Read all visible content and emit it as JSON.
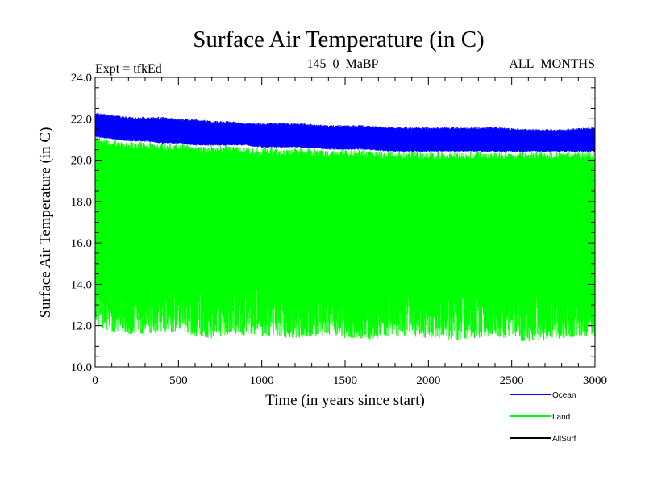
{
  "chart_data": {
    "type": "line",
    "title": "Surface Air Temperature (in C)",
    "subtitle_left": "Expt = tfkEd",
    "subtitle_center": "145_0_MaBP",
    "subtitle_right": "ALL_MONTHS",
    "xlabel": "Time (in years since start)",
    "ylabel": "Surface Air Temperature (in C)",
    "xlim": [
      0,
      3000
    ],
    "ylim": [
      10.0,
      24.0
    ],
    "x_ticks": [
      0,
      500,
      1000,
      1500,
      2000,
      2500,
      3000
    ],
    "x_tick_labels": [
      "0",
      "500",
      "1000",
      "1500",
      "2000",
      "2500",
      "3000"
    ],
    "y_ticks": [
      10,
      12,
      14,
      16,
      18,
      20,
      22,
      24
    ],
    "y_tick_labels": [
      "10.0",
      "12.0",
      "14.0",
      "16.0",
      "18.0",
      "20.0",
      "22.0",
      "24.0"
    ],
    "grid": false,
    "legend_position": "bottom-right",
    "series": [
      {
        "name": "Ocean",
        "color": "#0000ff",
        "x": [
          0,
          100,
          200,
          300,
          400,
          500,
          600,
          700,
          800,
          900,
          1000,
          1200,
          1400,
          1600,
          1800,
          2000,
          2200,
          2400,
          2600,
          2800,
          3000
        ],
        "y_min": [
          21.1,
          21.0,
          20.9,
          20.9,
          20.8,
          20.8,
          20.7,
          20.7,
          20.7,
          20.7,
          20.6,
          20.6,
          20.5,
          20.5,
          20.4,
          20.4,
          20.4,
          20.4,
          20.4,
          20.4,
          20.4
        ],
        "y_max": [
          22.3,
          22.2,
          22.1,
          22.1,
          22.1,
          22.0,
          22.0,
          21.9,
          21.9,
          21.8,
          21.8,
          21.8,
          21.7,
          21.7,
          21.6,
          21.6,
          21.6,
          21.6,
          21.5,
          21.5,
          21.6
        ]
      },
      {
        "name": "Land",
        "color": "#00ff00",
        "x": [
          0,
          100,
          200,
          300,
          400,
          500,
          600,
          700,
          800,
          900,
          1000,
          1200,
          1400,
          1600,
          1800,
          2000,
          2200,
          2400,
          2600,
          2800,
          3000
        ],
        "y_min": [
          12.0,
          11.7,
          11.6,
          11.6,
          11.7,
          11.6,
          11.5,
          11.3,
          11.6,
          11.5,
          11.5,
          11.4,
          11.5,
          11.3,
          11.5,
          11.4,
          11.3,
          11.5,
          11.2,
          11.4,
          11.5
        ],
        "y_max": [
          21.2,
          21.0,
          20.9,
          20.9,
          20.8,
          20.8,
          20.7,
          20.7,
          20.7,
          20.6,
          20.6,
          20.6,
          20.5,
          20.5,
          20.4,
          20.4,
          20.4,
          20.4,
          20.4,
          20.4,
          20.4
        ]
      },
      {
        "name": "AllSurf",
        "color": "#000000",
        "x": [],
        "y": []
      }
    ]
  }
}
